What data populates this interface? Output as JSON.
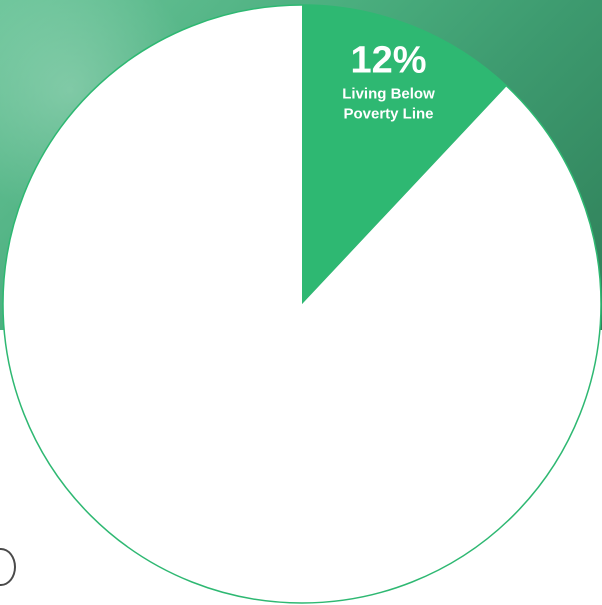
{
  "chart_data": {
    "type": "pie",
    "start_angle_deg": 0,
    "direction": "clockwise",
    "slices": [
      {
        "value": 12,
        "label": "12%",
        "text_lines": [
          "Living Below",
          "Poverty Line"
        ],
        "color": "#2eb872"
      },
      {
        "value": 88,
        "label": "",
        "text_lines": [],
        "color": "#ffffff"
      }
    ]
  },
  "colors": {
    "accent": "#2eb872",
    "outline": "#2eb872",
    "background_green": "#3f9f72"
  }
}
